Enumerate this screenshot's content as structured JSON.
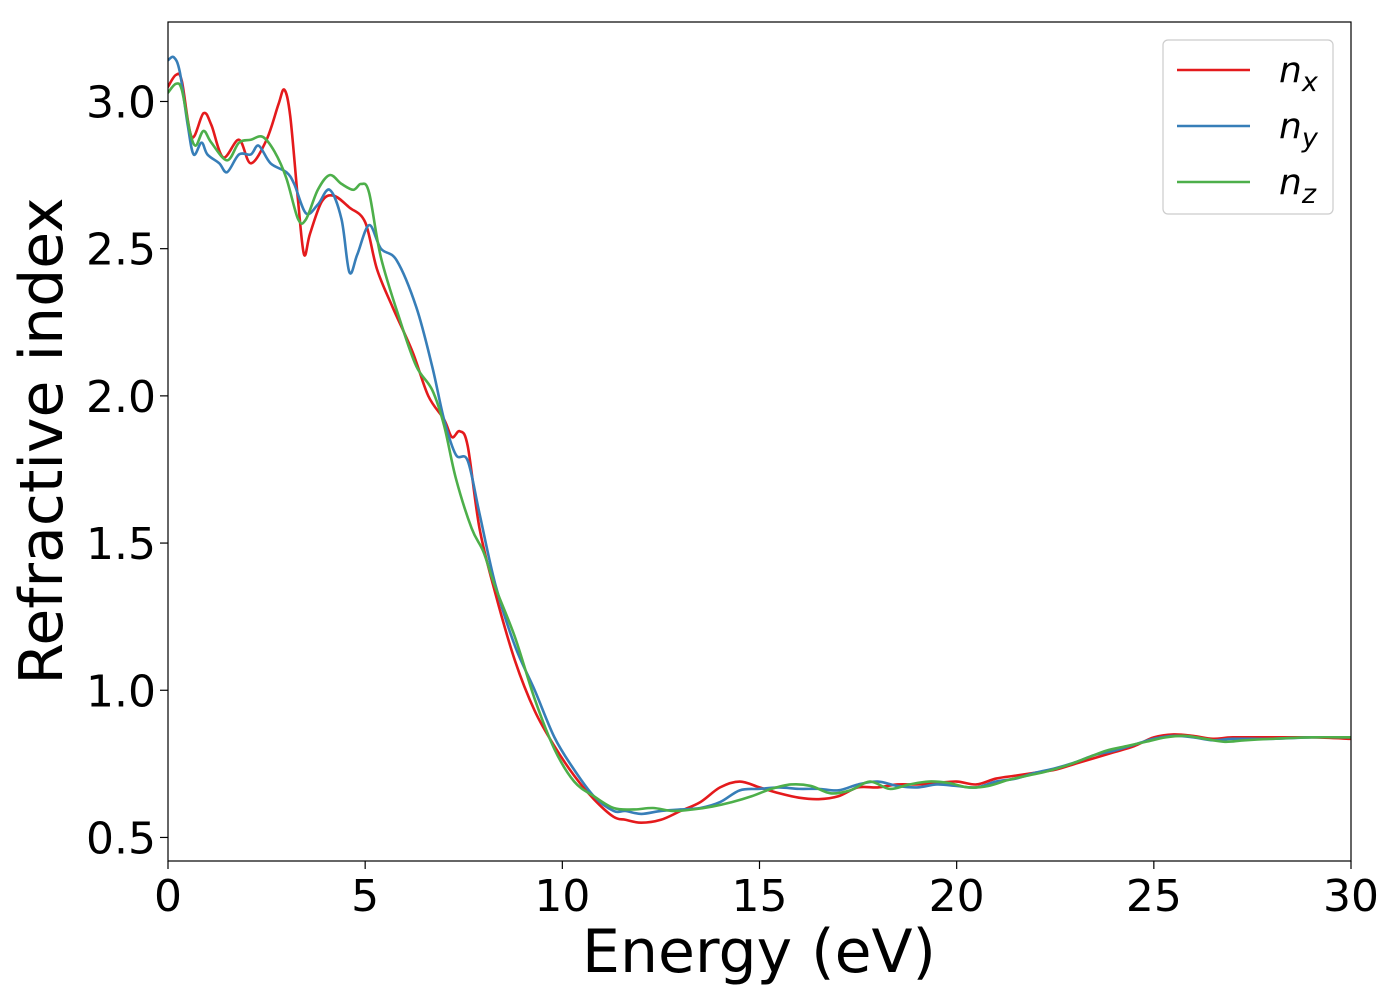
{
  "chart_data": {
    "type": "line",
    "title": "",
    "xlabel": "Energy (eV)",
    "ylabel": "Refractive index",
    "xlim": [
      0,
      30
    ],
    "ylim": [
      0.42,
      3.27
    ],
    "xticks": [
      0,
      5,
      10,
      15,
      20,
      25,
      30
    ],
    "yticks": [
      0.5,
      1.0,
      1.5,
      2.0,
      2.5,
      3.0
    ],
    "grid": false,
    "legend_position": "top-right",
    "series": [
      {
        "name": "n",
        "subscript": "x",
        "color": "#e41a1c",
        "points": [
          [
            0,
            3.05
          ],
          [
            0.2,
            3.09
          ],
          [
            0.35,
            3.07
          ],
          [
            0.6,
            2.88
          ],
          [
            0.9,
            2.96
          ],
          [
            1.1,
            2.92
          ],
          [
            1.4,
            2.81
          ],
          [
            1.8,
            2.87
          ],
          [
            2.1,
            2.79
          ],
          [
            2.5,
            2.87
          ],
          [
            2.8,
            2.99
          ],
          [
            2.95,
            3.04
          ],
          [
            3.1,
            2.95
          ],
          [
            3.3,
            2.66
          ],
          [
            3.45,
            2.48
          ],
          [
            3.6,
            2.55
          ],
          [
            3.9,
            2.66
          ],
          [
            4.2,
            2.68
          ],
          [
            4.6,
            2.64
          ],
          [
            5.0,
            2.59
          ],
          [
            5.3,
            2.43
          ],
          [
            5.7,
            2.3
          ],
          [
            6.2,
            2.15
          ],
          [
            6.6,
            2.0
          ],
          [
            7.0,
            1.92
          ],
          [
            7.2,
            1.86
          ],
          [
            7.4,
            1.88
          ],
          [
            7.6,
            1.83
          ],
          [
            7.9,
            1.55
          ],
          [
            8.3,
            1.33
          ],
          [
            8.8,
            1.1
          ],
          [
            9.3,
            0.93
          ],
          [
            9.8,
            0.81
          ],
          [
            10.3,
            0.71
          ],
          [
            10.8,
            0.63
          ],
          [
            11.3,
            0.57
          ],
          [
            11.6,
            0.56
          ],
          [
            12.0,
            0.55
          ],
          [
            12.5,
            0.56
          ],
          [
            13.0,
            0.59
          ],
          [
            13.5,
            0.62
          ],
          [
            14.0,
            0.67
          ],
          [
            14.5,
            0.69
          ],
          [
            15.0,
            0.67
          ],
          [
            15.5,
            0.65
          ],
          [
            16.0,
            0.635
          ],
          [
            16.5,
            0.63
          ],
          [
            17.0,
            0.64
          ],
          [
            17.5,
            0.67
          ],
          [
            18.0,
            0.67
          ],
          [
            18.5,
            0.68
          ],
          [
            19.0,
            0.68
          ],
          [
            19.5,
            0.685
          ],
          [
            20.0,
            0.69
          ],
          [
            20.5,
            0.68
          ],
          [
            21.0,
            0.7
          ],
          [
            21.5,
            0.71
          ],
          [
            22.0,
            0.72
          ],
          [
            22.5,
            0.73
          ],
          [
            23.0,
            0.75
          ],
          [
            23.5,
            0.77
          ],
          [
            24.0,
            0.79
          ],
          [
            24.5,
            0.81
          ],
          [
            25.0,
            0.84
          ],
          [
            25.5,
            0.85
          ],
          [
            26.0,
            0.845
          ],
          [
            26.5,
            0.835
          ],
          [
            27.0,
            0.84
          ],
          [
            28.0,
            0.84
          ],
          [
            29.0,
            0.84
          ],
          [
            30.0,
            0.835
          ]
        ]
      },
      {
        "name": "n",
        "subscript": "y",
        "color": "#377eb8",
        "points": [
          [
            0,
            3.14
          ],
          [
            0.15,
            3.15
          ],
          [
            0.3,
            3.1
          ],
          [
            0.5,
            2.92
          ],
          [
            0.65,
            2.82
          ],
          [
            0.85,
            2.86
          ],
          [
            1.0,
            2.82
          ],
          [
            1.3,
            2.79
          ],
          [
            1.5,
            2.76
          ],
          [
            1.8,
            2.82
          ],
          [
            2.1,
            2.82
          ],
          [
            2.3,
            2.85
          ],
          [
            2.6,
            2.79
          ],
          [
            3.0,
            2.76
          ],
          [
            3.2,
            2.72
          ],
          [
            3.5,
            2.62
          ],
          [
            3.8,
            2.65
          ],
          [
            4.1,
            2.7
          ],
          [
            4.4,
            2.6
          ],
          [
            4.6,
            2.42
          ],
          [
            4.8,
            2.48
          ],
          [
            5.1,
            2.58
          ],
          [
            5.4,
            2.5
          ],
          [
            5.8,
            2.46
          ],
          [
            6.3,
            2.3
          ],
          [
            6.7,
            2.1
          ],
          [
            7.0,
            1.92
          ],
          [
            7.3,
            1.8
          ],
          [
            7.6,
            1.78
          ],
          [
            7.9,
            1.6
          ],
          [
            8.3,
            1.36
          ],
          [
            8.8,
            1.15
          ],
          [
            9.3,
            1.0
          ],
          [
            9.8,
            0.84
          ],
          [
            10.3,
            0.73
          ],
          [
            10.8,
            0.64
          ],
          [
            11.3,
            0.59
          ],
          [
            11.6,
            0.59
          ],
          [
            12.0,
            0.58
          ],
          [
            12.5,
            0.59
          ],
          [
            13.0,
            0.595
          ],
          [
            13.5,
            0.6
          ],
          [
            14.0,
            0.62
          ],
          [
            14.5,
            0.66
          ],
          [
            15.0,
            0.665
          ],
          [
            15.5,
            0.67
          ],
          [
            16.0,
            0.665
          ],
          [
            16.5,
            0.665
          ],
          [
            17.0,
            0.66
          ],
          [
            17.5,
            0.68
          ],
          [
            18.0,
            0.69
          ],
          [
            18.5,
            0.675
          ],
          [
            19.0,
            0.67
          ],
          [
            19.5,
            0.68
          ],
          [
            20.0,
            0.675
          ],
          [
            20.5,
            0.67
          ],
          [
            21.0,
            0.69
          ],
          [
            21.5,
            0.7
          ],
          [
            22.0,
            0.72
          ],
          [
            22.5,
            0.735
          ],
          [
            23.0,
            0.755
          ],
          [
            23.5,
            0.78
          ],
          [
            24.0,
            0.795
          ],
          [
            24.5,
            0.815
          ],
          [
            25.0,
            0.835
          ],
          [
            25.5,
            0.845
          ],
          [
            26.0,
            0.84
          ],
          [
            26.5,
            0.83
          ],
          [
            27.0,
            0.835
          ],
          [
            28.0,
            0.835
          ],
          [
            29.0,
            0.84
          ],
          [
            30.0,
            0.84
          ]
        ]
      },
      {
        "name": "n",
        "subscript": "z",
        "color": "#4daf4a",
        "points": [
          [
            0,
            3.03
          ],
          [
            0.2,
            3.06
          ],
          [
            0.35,
            3.04
          ],
          [
            0.55,
            2.9
          ],
          [
            0.7,
            2.85
          ],
          [
            0.9,
            2.9
          ],
          [
            1.1,
            2.86
          ],
          [
            1.5,
            2.8
          ],
          [
            1.8,
            2.86
          ],
          [
            2.1,
            2.87
          ],
          [
            2.4,
            2.88
          ],
          [
            2.7,
            2.83
          ],
          [
            3.0,
            2.74
          ],
          [
            3.3,
            2.6
          ],
          [
            3.5,
            2.6
          ],
          [
            3.8,
            2.7
          ],
          [
            4.1,
            2.75
          ],
          [
            4.4,
            2.72
          ],
          [
            4.7,
            2.7
          ],
          [
            4.9,
            2.72
          ],
          [
            5.1,
            2.69
          ],
          [
            5.4,
            2.47
          ],
          [
            5.9,
            2.25
          ],
          [
            6.3,
            2.1
          ],
          [
            6.7,
            2.02
          ],
          [
            7.0,
            1.9
          ],
          [
            7.3,
            1.72
          ],
          [
            7.7,
            1.55
          ],
          [
            8.0,
            1.47
          ],
          [
            8.3,
            1.35
          ],
          [
            8.8,
            1.18
          ],
          [
            9.3,
            0.97
          ],
          [
            9.8,
            0.8
          ],
          [
            10.3,
            0.69
          ],
          [
            10.8,
            0.64
          ],
          [
            11.3,
            0.6
          ],
          [
            11.8,
            0.595
          ],
          [
            12.3,
            0.6
          ],
          [
            12.8,
            0.59
          ],
          [
            13.3,
            0.595
          ],
          [
            13.8,
            0.605
          ],
          [
            14.3,
            0.62
          ],
          [
            14.8,
            0.64
          ],
          [
            15.3,
            0.665
          ],
          [
            15.8,
            0.68
          ],
          [
            16.3,
            0.675
          ],
          [
            16.8,
            0.65
          ],
          [
            17.3,
            0.66
          ],
          [
            17.8,
            0.69
          ],
          [
            18.3,
            0.665
          ],
          [
            18.8,
            0.68
          ],
          [
            19.3,
            0.69
          ],
          [
            19.8,
            0.685
          ],
          [
            20.3,
            0.67
          ],
          [
            20.8,
            0.675
          ],
          [
            21.3,
            0.695
          ],
          [
            21.8,
            0.71
          ],
          [
            22.3,
            0.725
          ],
          [
            22.8,
            0.745
          ],
          [
            23.3,
            0.77
          ],
          [
            23.8,
            0.795
          ],
          [
            24.3,
            0.81
          ],
          [
            24.8,
            0.825
          ],
          [
            25.3,
            0.84
          ],
          [
            25.8,
            0.845
          ],
          [
            26.3,
            0.835
          ],
          [
            26.8,
            0.825
          ],
          [
            27.3,
            0.83
          ],
          [
            28.0,
            0.835
          ],
          [
            29.0,
            0.84
          ],
          [
            30.0,
            0.84
          ]
        ]
      }
    ]
  }
}
